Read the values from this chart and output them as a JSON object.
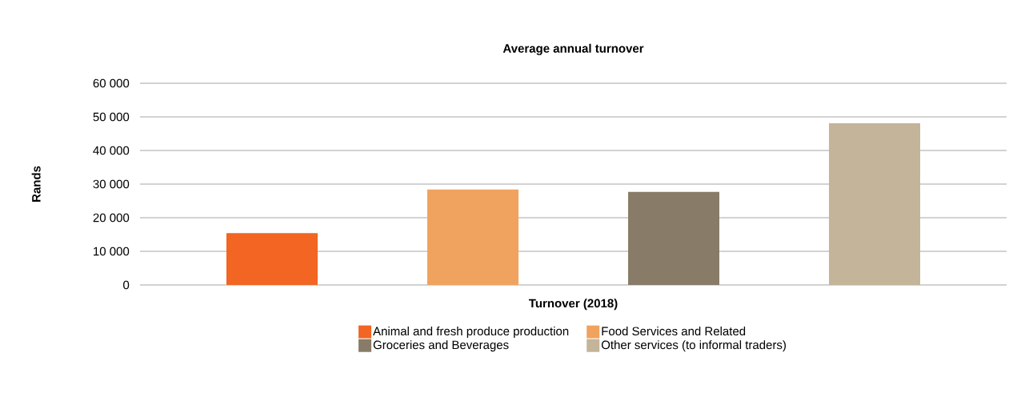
{
  "chart_data": {
    "type": "bar",
    "title": "Average annual turnover",
    "ylabel": "Rands",
    "categories": [
      "Turnover (2018)"
    ],
    "series": [
      {
        "name": "Animal and fresh produce production",
        "color": "#f26522",
        "values": [
          15400
        ]
      },
      {
        "name": "Food Services and Related",
        "color": "#f0a35e",
        "values": [
          28400
        ]
      },
      {
        "name": "Groceries and Beverages",
        "color": "#887b68",
        "values": [
          27700
        ]
      },
      {
        "name": "Other services (to informal traders)",
        "color": "#c3b49a",
        "values": [
          48100
        ]
      }
    ],
    "ylim": [
      0,
      60000
    ],
    "yticks": [
      0,
      {
        "value": 10000,
        "label": "10 000"
      },
      {
        "value": 20000,
        "label": "20 000"
      },
      {
        "value": 30000,
        "label": "30 000"
      },
      {
        "value": 40000,
        "label": "40 000"
      },
      {
        "value": 50000,
        "label": "50 000"
      },
      {
        "value": 60000,
        "label": "60 000"
      }
    ],
    "grid": "y",
    "legend": "bottom"
  }
}
